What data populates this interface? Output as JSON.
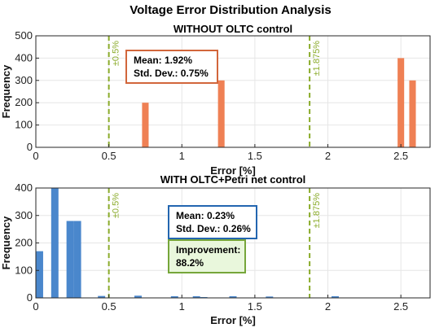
{
  "figure_title": "Voltage Error Distribution Analysis",
  "colors": {
    "top_bars": "#ef8054",
    "bottom_bars": "#4a87cc",
    "threshold": "#8aab2a",
    "grid": "#e6e6e6"
  },
  "chart_data": [
    {
      "type": "bar",
      "title": "WITHOUT OLTC control",
      "xlabel": "Error [%]",
      "ylabel": "Frequency",
      "xlim": [
        0,
        2.7
      ],
      "ylim": [
        0,
        500
      ],
      "xticks": [
        0,
        0.5,
        1,
        1.5,
        2,
        2.5
      ],
      "xtick_labels": [
        "0",
        "0.5",
        "1",
        "1.5",
        "2",
        "2.5"
      ],
      "yticks": [
        0,
        100,
        200,
        300,
        400,
        500
      ],
      "ytick_labels": [
        "0",
        "100",
        "200",
        "300",
        "400",
        "500"
      ],
      "bar_color": "#ef8054",
      "bar_width": 0.045,
      "bars": [
        {
          "x": 0.75,
          "y": 200
        },
        {
          "x": 1.27,
          "y": 300
        },
        {
          "x": 2.5,
          "y": 400
        },
        {
          "x": 2.58,
          "y": 300
        }
      ],
      "thresholds": [
        {
          "x": 0.5,
          "label": "±0.5%"
        },
        {
          "x": 1.875,
          "label": "±1.875%"
        }
      ],
      "grid": true,
      "stats": {
        "mean": "Mean: 1.92%",
        "std": "Std. Dev.: 0.75%"
      }
    },
    {
      "type": "bar",
      "title": "WITH OLTC+Petri net control",
      "xlabel": "Error [%]",
      "ylabel": "Frequency",
      "xlim": [
        0,
        2.7
      ],
      "ylim": [
        0,
        400
      ],
      "xticks": [
        0,
        0.5,
        1,
        1.5,
        2,
        2.5
      ],
      "xtick_labels": [
        "0",
        "0.5",
        "1",
        "1.5",
        "2",
        "2.5"
      ],
      "yticks": [
        0,
        100,
        200,
        300,
        400
      ],
      "ytick_labels": [
        "0",
        "100",
        "200",
        "300",
        "400"
      ],
      "bar_color": "#4a87cc",
      "bar_width": 0.05,
      "bars": [
        {
          "x": 0.025,
          "y": 170
        },
        {
          "x": 0.13,
          "y": 400
        },
        {
          "x": 0.235,
          "y": 280
        },
        {
          "x": 0.285,
          "y": 280
        },
        {
          "x": 0.45,
          "y": 7
        },
        {
          "x": 0.7,
          "y": 8
        },
        {
          "x": 0.95,
          "y": 6
        },
        {
          "x": 1.1,
          "y": 6
        },
        {
          "x": 1.15,
          "y": 3
        },
        {
          "x": 1.35,
          "y": 6
        },
        {
          "x": 1.6,
          "y": 5
        },
        {
          "x": 2.05,
          "y": 6
        }
      ],
      "thresholds": [
        {
          "x": 0.5,
          "label": "±0.5%"
        },
        {
          "x": 1.875,
          "label": "±1.875%"
        }
      ],
      "grid": true,
      "stats": {
        "mean": "Mean: 0.23%",
        "std": "Std. Dev.: 0.26%"
      },
      "improvement": {
        "label": "Improvement:",
        "value": "88.2%"
      }
    }
  ]
}
